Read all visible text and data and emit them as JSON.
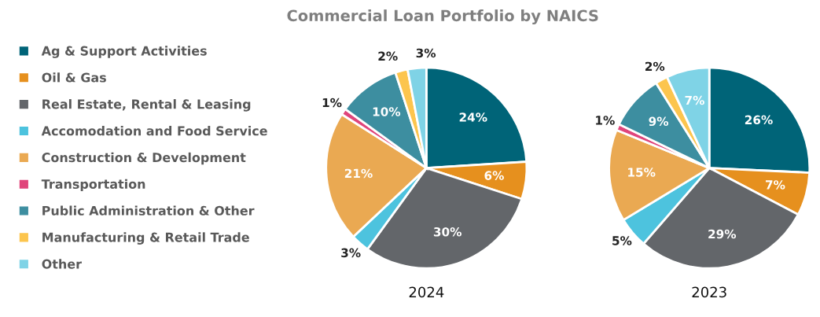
{
  "chart_data": [
    {
      "type": "pie",
      "title": "Commercial Loan Portfolio by NAICS",
      "xlabel": "2024",
      "legend": "left",
      "categories": [
        "Ag & Support Activities",
        "Oil & Gas",
        "Real Estate, Rental & Leasing",
        "Accomodation and Food Service",
        "Construction & Development",
        "Transportation",
        "Public Administration & Other",
        "Manufacturing & Retail Trade",
        "Other"
      ],
      "values": [
        24,
        6,
        30,
        3,
        21,
        1,
        10,
        2,
        3
      ],
      "value_labels": [
        "24%",
        "6%",
        "30%",
        "3%",
        "21%",
        "1%",
        "10%",
        "2%",
        "3%"
      ],
      "colors": [
        "#006478",
        "#e6901e",
        "#63666a",
        "#4dc3de",
        "#eaa952",
        "#e0457b",
        "#3d8ea0",
        "#fcc54e",
        "#7fd3e6"
      ]
    },
    {
      "type": "pie",
      "xlabel": "2023",
      "categories": [
        null,
        null,
        null,
        null,
        null,
        null,
        null,
        null,
        null
      ],
      "values": [
        26,
        7,
        29,
        5,
        15,
        1,
        9,
        2,
        7
      ],
      "value_labels": [
        "26%",
        "7%",
        "29%",
        "5%",
        "15%",
        "1%",
        "9%",
        "2%",
        "7%"
      ],
      "colors": [
        "#006478",
        "#e6901e",
        "#63666a",
        "#4dc3de",
        "#eaa952",
        "#e0457b",
        "#3d8ea0",
        "#fcc54e",
        "#7fd3e6"
      ]
    }
  ]
}
